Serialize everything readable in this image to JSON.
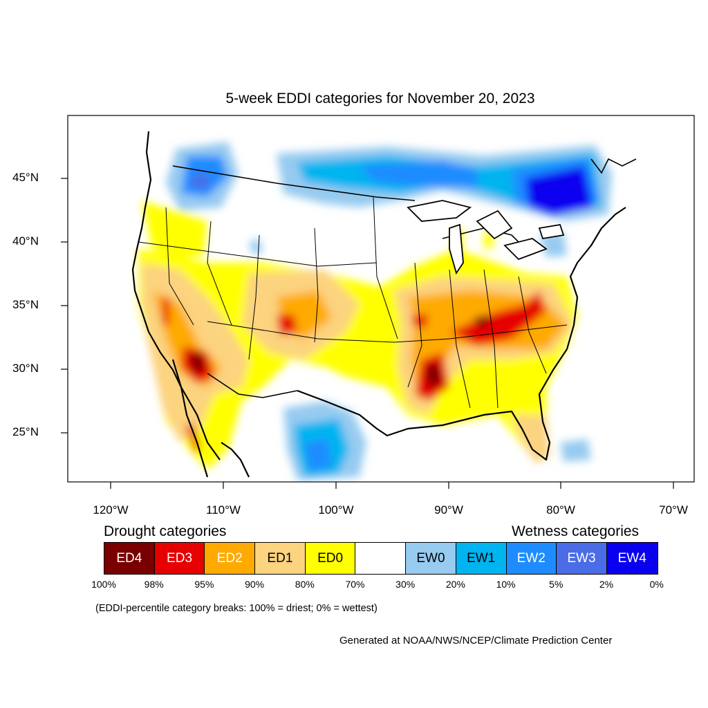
{
  "title": "5-week EDDI categories for November 20, 2023",
  "latitude_labels": [
    "45°N",
    "40°N",
    "35°N",
    "30°N",
    "25°N"
  ],
  "longitude_labels": [
    "120°W",
    "110°W",
    "100°W",
    "90°W",
    "80°W",
    "70°W"
  ],
  "legend": {
    "drought_heading": "Drought categories",
    "wetness_heading": "Wetness categories",
    "categories": [
      {
        "label": "ED4",
        "color": "#7a0000",
        "text_color": "#ffffff"
      },
      {
        "label": "ED3",
        "color": "#e60000",
        "text_color": "#ffffff"
      },
      {
        "label": "ED2",
        "color": "#ffaa00",
        "text_color": "#ffffff"
      },
      {
        "label": "ED1",
        "color": "#fcd37f",
        "text_color": "#000000"
      },
      {
        "label": "ED0",
        "color": "#ffff00",
        "text_color": "#000000"
      },
      {
        "label": "",
        "color": "#ffffff",
        "text_color": "#000000"
      },
      {
        "label": "EW0",
        "color": "#97cbf0",
        "text_color": "#000000"
      },
      {
        "label": "EW1",
        "color": "#00b4f0",
        "text_color": "#000000"
      },
      {
        "label": "EW2",
        "color": "#1e8cff",
        "text_color": "#ffffff"
      },
      {
        "label": "EW3",
        "color": "#4a6ce6",
        "text_color": "#ffffff"
      },
      {
        "label": "EW4",
        "color": "#0a00f0",
        "text_color": "#ffffff"
      }
    ],
    "percent_breaks": [
      "100%",
      "98%",
      "95%",
      "90%",
      "80%",
      "70%",
      "30%",
      "20%",
      "10%",
      "5%",
      "2%",
      "0%"
    ]
  },
  "note": "(EDDI-percentile category breaks: 100% = driest; 0% = wettest)",
  "credit": "Generated at NOAA/NWS/NCEP/Climate Prediction Center"
}
